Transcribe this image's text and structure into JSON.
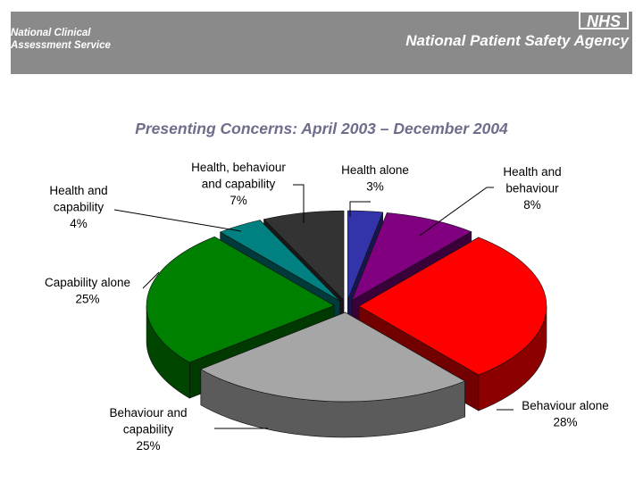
{
  "header": {
    "org_left": [
      "National Clinical",
      "Assessment Service"
    ],
    "org_right": "National Patient Safety Agency",
    "logo": "NHS"
  },
  "chart_data": {
    "type": "pie",
    "title": "Presenting Concerns:  April 2003 – December 2004",
    "slices": [
      {
        "label": "Health alone",
        "value": 3,
        "color": "#3333aa"
      },
      {
        "label": "Health and behaviour",
        "value": 8,
        "color": "#800080"
      },
      {
        "label": "Behaviour alone",
        "value": 28,
        "color": "#ff0000"
      },
      {
        "label": "Behaviour and capability",
        "value": 25,
        "color": "#a6a6a6"
      },
      {
        "label": "Capability alone",
        "value": 25,
        "color": "#008000"
      },
      {
        "label": "Health and capability",
        "value": 4,
        "color": "#008080"
      },
      {
        "label": "Health, behaviour and capability",
        "value": 7,
        "color": "#333333"
      }
    ],
    "labels": [
      {
        "lines": [
          "Health alone",
          "3%"
        ]
      },
      {
        "lines": [
          "Health and",
          "behaviour",
          "8%"
        ]
      },
      {
        "lines": [
          "Behaviour alone",
          "28%"
        ]
      },
      {
        "lines": [
          "Behaviour and",
          "capability",
          "25%"
        ]
      },
      {
        "lines": [
          "Capability alone",
          "25%"
        ]
      },
      {
        "lines": [
          "Health and",
          "capability",
          "4%"
        ]
      },
      {
        "lines": [
          "Health, behaviour",
          "and capability",
          "7%"
        ]
      }
    ]
  }
}
